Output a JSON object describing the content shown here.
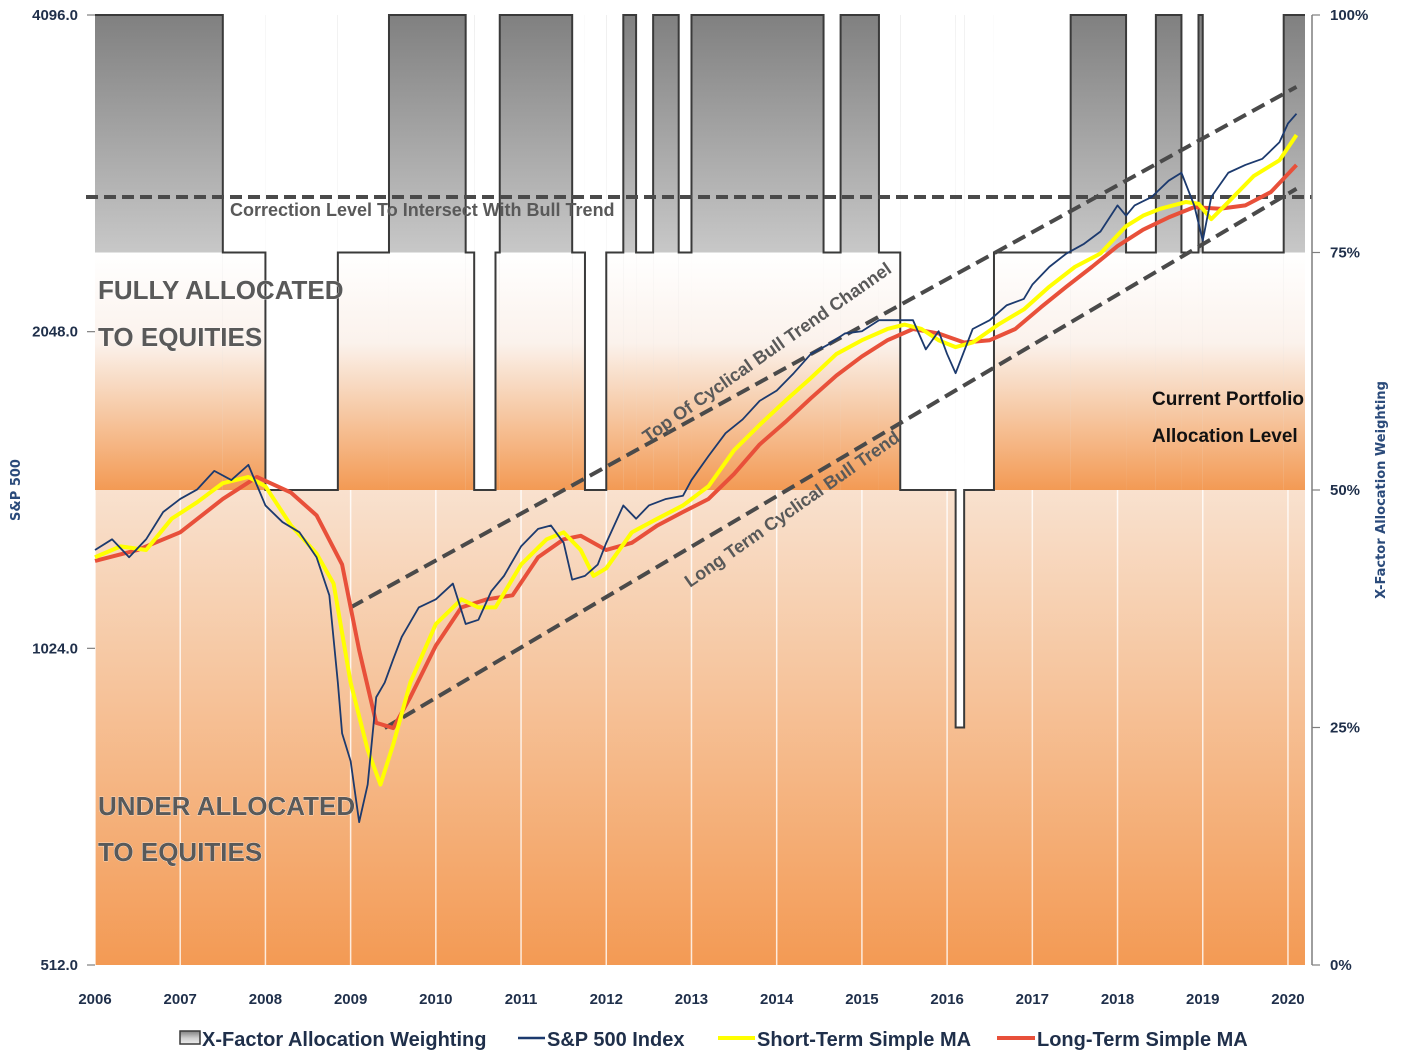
{
  "chart_data": {
    "type": "line",
    "xlabel": "",
    "ylabel_left": "S&P 500",
    "ylabel_right": "X-Factor Allocation Weighting",
    "x_ticks": [
      "2006",
      "2007",
      "2008",
      "2009",
      "2010",
      "2011",
      "2012",
      "2013",
      "2014",
      "2015",
      "2016",
      "2017",
      "2018",
      "2019",
      "2020"
    ],
    "y_left_ticks": [
      "4096.0",
      "2048.0",
      "1024.0",
      "512.0"
    ],
    "y_left_scale": "log2",
    "y_left_range": [
      512,
      4096
    ],
    "y_right_ticks": [
      "100%",
      "75%",
      "50%",
      "25%",
      "0%"
    ],
    "y_right_range": [
      0,
      100
    ],
    "x_range": [
      2006.0,
      2020.2
    ],
    "legend_position": "bottom",
    "colors": {
      "allocation_dark": "#858585",
      "allocation_light": "#ffffff",
      "sp500": "#1c3a6e",
      "short_ma": "#ffff00",
      "long_ma": "#e8503a",
      "bg_top": "#f6e9df",
      "bg_bottom": "#f39a54",
      "dashed": "#4a4a4a"
    },
    "series": [
      {
        "name": "X-Factor Allocation Weighting",
        "type": "step-area",
        "points": [
          [
            2006.0,
            100
          ],
          [
            2007.5,
            100
          ],
          [
            2007.5,
            75
          ],
          [
            2008.0,
            75
          ],
          [
            2008.0,
            50
          ],
          [
            2008.85,
            50
          ],
          [
            2008.85,
            75
          ],
          [
            2009.45,
            75
          ],
          [
            2009.45,
            100
          ],
          [
            2010.35,
            100
          ],
          [
            2010.35,
            75
          ],
          [
            2010.45,
            75
          ],
          [
            2010.45,
            50
          ],
          [
            2010.7,
            50
          ],
          [
            2010.7,
            75
          ],
          [
            2010.75,
            75
          ],
          [
            2010.75,
            100
          ],
          [
            2011.6,
            100
          ],
          [
            2011.6,
            75
          ],
          [
            2011.75,
            75
          ],
          [
            2011.75,
            50
          ],
          [
            2012.0,
            50
          ],
          [
            2012.0,
            75
          ],
          [
            2012.2,
            75
          ],
          [
            2012.2,
            100
          ],
          [
            2012.35,
            100
          ],
          [
            2012.35,
            75
          ],
          [
            2012.55,
            75
          ],
          [
            2012.55,
            100
          ],
          [
            2012.85,
            100
          ],
          [
            2012.85,
            75
          ],
          [
            2013.0,
            75
          ],
          [
            2013.0,
            100
          ],
          [
            2014.55,
            100
          ],
          [
            2014.55,
            75
          ],
          [
            2014.75,
            75
          ],
          [
            2014.75,
            100
          ],
          [
            2015.2,
            100
          ],
          [
            2015.2,
            75
          ],
          [
            2015.45,
            75
          ],
          [
            2015.45,
            50
          ],
          [
            2016.1,
            50
          ],
          [
            2016.1,
            25
          ],
          [
            2016.2,
            25
          ],
          [
            2016.2,
            50
          ],
          [
            2016.55,
            50
          ],
          [
            2016.55,
            75
          ],
          [
            2017.45,
            75
          ],
          [
            2017.45,
            100
          ],
          [
            2018.1,
            100
          ],
          [
            2018.1,
            75
          ],
          [
            2018.45,
            75
          ],
          [
            2018.45,
            100
          ],
          [
            2018.75,
            100
          ],
          [
            2018.75,
            75
          ],
          [
            2018.95,
            75
          ],
          [
            2018.95,
            100
          ],
          [
            2019.0,
            100
          ],
          [
            2019.0,
            75
          ],
          [
            2019.95,
            75
          ],
          [
            2019.95,
            100
          ],
          [
            2020.2,
            100
          ]
        ]
      },
      {
        "name": "S&P 500 Index",
        "x": [
          2006.0,
          2006.2,
          2006.4,
          2006.6,
          2006.8,
          2007.0,
          2007.2,
          2007.4,
          2007.6,
          2007.8,
          2008.0,
          2008.2,
          2008.4,
          2008.6,
          2008.75,
          2008.85,
          2008.9,
          2009.0,
          2009.1,
          2009.2,
          2009.3,
          2009.4,
          2009.5,
          2009.6,
          2009.8,
          2010.0,
          2010.2,
          2010.35,
          2010.5,
          2010.65,
          2010.8,
          2011.0,
          2011.2,
          2011.35,
          2011.5,
          2011.6,
          2011.75,
          2011.9,
          2012.0,
          2012.2,
          2012.35,
          2012.5,
          2012.7,
          2012.9,
          2013.0,
          2013.2,
          2013.4,
          2013.6,
          2013.8,
          2014.0,
          2014.2,
          2014.4,
          2014.6,
          2014.8,
          2015.0,
          2015.2,
          2015.4,
          2015.6,
          2015.75,
          2015.9,
          2016.0,
          2016.1,
          2016.3,
          2016.5,
          2016.7,
          2016.9,
          2017.0,
          2017.2,
          2017.4,
          2017.6,
          2017.8,
          2018.0,
          2018.1,
          2018.2,
          2018.4,
          2018.6,
          2018.75,
          2018.9,
          2019.0,
          2019.1,
          2019.3,
          2019.5,
          2019.7,
          2019.9,
          2020.0,
          2020.1
        ],
        "values": [
          1270,
          1300,
          1250,
          1300,
          1380,
          1420,
          1450,
          1510,
          1480,
          1530,
          1400,
          1350,
          1320,
          1250,
          1150,
          950,
          850,
          800,
          700,
          760,
          920,
          950,
          1000,
          1050,
          1120,
          1140,
          1180,
          1080,
          1090,
          1160,
          1200,
          1280,
          1330,
          1340,
          1290,
          1190,
          1200,
          1230,
          1290,
          1400,
          1360,
          1400,
          1420,
          1430,
          1480,
          1560,
          1640,
          1690,
          1760,
          1800,
          1870,
          1950,
          1990,
          2040,
          2050,
          2100,
          2100,
          2100,
          1970,
          2050,
          1950,
          1870,
          2060,
          2100,
          2170,
          2200,
          2270,
          2360,
          2430,
          2480,
          2550,
          2700,
          2640,
          2700,
          2750,
          2850,
          2900,
          2700,
          2500,
          2750,
          2900,
          2950,
          2990,
          3100,
          3230,
          3300
        ]
      },
      {
        "name": "Short-Term Simple MA",
        "x": [
          2006.0,
          2006.3,
          2006.6,
          2006.9,
          2007.2,
          2007.5,
          2007.8,
          2008.0,
          2008.3,
          2008.6,
          2008.8,
          2009.0,
          2009.2,
          2009.35,
          2009.5,
          2009.7,
          2010.0,
          2010.3,
          2010.5,
          2010.7,
          2011.0,
          2011.3,
          2011.5,
          2011.7,
          2011.85,
          2012.0,
          2012.3,
          2012.6,
          2012.9,
          2013.2,
          2013.5,
          2013.8,
          2014.1,
          2014.4,
          2014.7,
          2015.0,
          2015.3,
          2015.5,
          2015.7,
          2015.9,
          2016.1,
          2016.3,
          2016.6,
          2016.9,
          2017.2,
          2017.5,
          2017.8,
          2018.1,
          2018.3,
          2018.5,
          2018.8,
          2018.95,
          2019.1,
          2019.3,
          2019.6,
          2019.9,
          2020.1
        ],
        "values": [
          1250,
          1280,
          1270,
          1360,
          1410,
          1470,
          1490,
          1460,
          1340,
          1260,
          1180,
          950,
          820,
          760,
          830,
          950,
          1080,
          1140,
          1120,
          1120,
          1230,
          1300,
          1320,
          1270,
          1200,
          1220,
          1320,
          1360,
          1400,
          1460,
          1580,
          1670,
          1760,
          1850,
          1950,
          2010,
          2060,
          2080,
          2060,
          2010,
          1980,
          2000,
          2080,
          2150,
          2260,
          2360,
          2430,
          2580,
          2640,
          2680,
          2720,
          2710,
          2620,
          2720,
          2880,
          2980,
          3150
        ]
      },
      {
        "name": "Long-Term Simple MA",
        "x": [
          2006.0,
          2006.5,
          2007.0,
          2007.5,
          2007.9,
          2008.3,
          2008.6,
          2008.9,
          2009.1,
          2009.3,
          2009.5,
          2009.7,
          2010.0,
          2010.3,
          2010.6,
          2010.9,
          2011.2,
          2011.5,
          2011.7,
          2012.0,
          2012.3,
          2012.6,
          2012.9,
          2013.2,
          2013.5,
          2013.8,
          2014.1,
          2014.4,
          2014.7,
          2015.0,
          2015.3,
          2015.6,
          2015.9,
          2016.2,
          2016.5,
          2016.8,
          2017.1,
          2017.4,
          2017.7,
          2018.0,
          2018.3,
          2018.6,
          2018.9,
          2019.2,
          2019.5,
          2019.8,
          2020.1
        ],
        "values": [
          1240,
          1270,
          1320,
          1420,
          1490,
          1440,
          1370,
          1230,
          1020,
          870,
          860,
          920,
          1030,
          1120,
          1140,
          1150,
          1250,
          1300,
          1310,
          1270,
          1290,
          1340,
          1380,
          1420,
          1500,
          1600,
          1680,
          1770,
          1860,
          1940,
          2010,
          2060,
          2040,
          2000,
          2010,
          2060,
          2160,
          2260,
          2360,
          2470,
          2560,
          2630,
          2690,
          2680,
          2700,
          2780,
          2950
        ]
      }
    ],
    "annotations": {
      "correction_level_value": 2750,
      "correction_level_label": "Correction Level To Intersect With Bull Trend",
      "channel_top_label": "Top Of Cyclical Bull Trend Channel",
      "channel_top_line": [
        [
          2009.0,
          1120
        ],
        [
          2020.1,
          3500
        ]
      ],
      "channel_bottom_label": "Long Term Cyclical Bull Trend",
      "channel_bottom_line": [
        [
          2009.4,
          860
        ],
        [
          2020.1,
          2800
        ]
      ],
      "channel_mid_line": [
        [
          2009.4,
          860
        ],
        [
          2020.1,
          2800
        ]
      ],
      "fully_allocated": [
        "FULLY ALLOCATED",
        "TO EQUITIES"
      ],
      "under_allocated": [
        "UNDER ALLOCATED",
        "TO EQUITIES"
      ],
      "current_portfolio": [
        "Current Portfolio",
        "Allocation Level"
      ]
    }
  }
}
